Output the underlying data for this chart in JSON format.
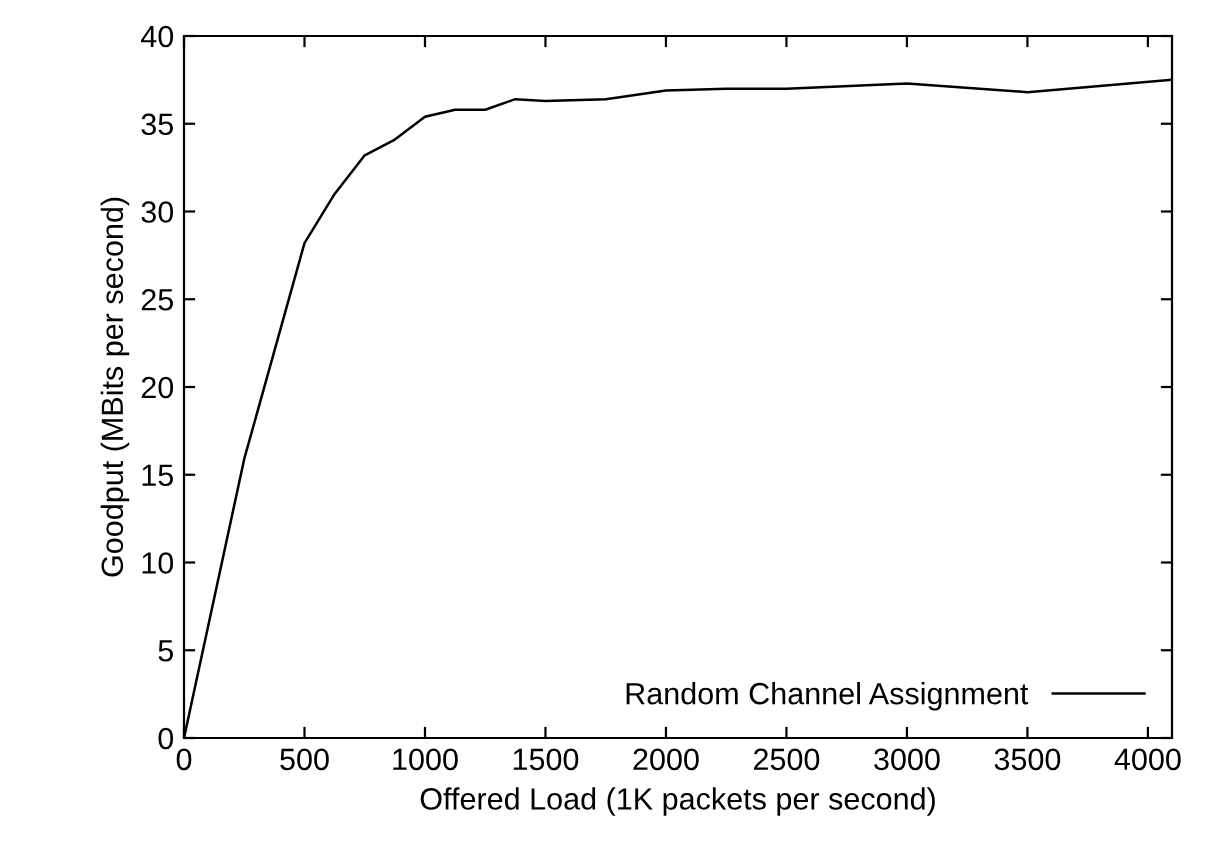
{
  "chart_data": {
    "type": "line",
    "xlabel": "Offered Load (1K packets per second)",
    "ylabel": "Goodput (MBits per second)",
    "x": [
      0,
      250,
      500,
      625,
      750,
      875,
      1000,
      1125,
      1250,
      1375,
      1500,
      1750,
      2000,
      2250,
      2500,
      3000,
      3500,
      4096
    ],
    "series": [
      {
        "name": "Random Channel Assignment",
        "color": "#000000",
        "values": [
          0,
          15.9,
          28.2,
          31.0,
          33.2,
          34.1,
          35.4,
          35.8,
          35.8,
          36.4,
          36.3,
          36.4,
          36.9,
          37.0,
          37.0,
          37.3,
          36.8,
          37.5
        ]
      }
    ],
    "xlim": [
      0,
      4100
    ],
    "ylim": [
      0,
      40
    ],
    "xticks": [
      0,
      500,
      1000,
      1500,
      2000,
      2500,
      3000,
      3500,
      4000
    ],
    "yticks": [
      0,
      5,
      10,
      15,
      20,
      25,
      30,
      35,
      40
    ],
    "grid": false,
    "legend": "bottom right",
    "marker": "none",
    "line_style": "solid"
  }
}
